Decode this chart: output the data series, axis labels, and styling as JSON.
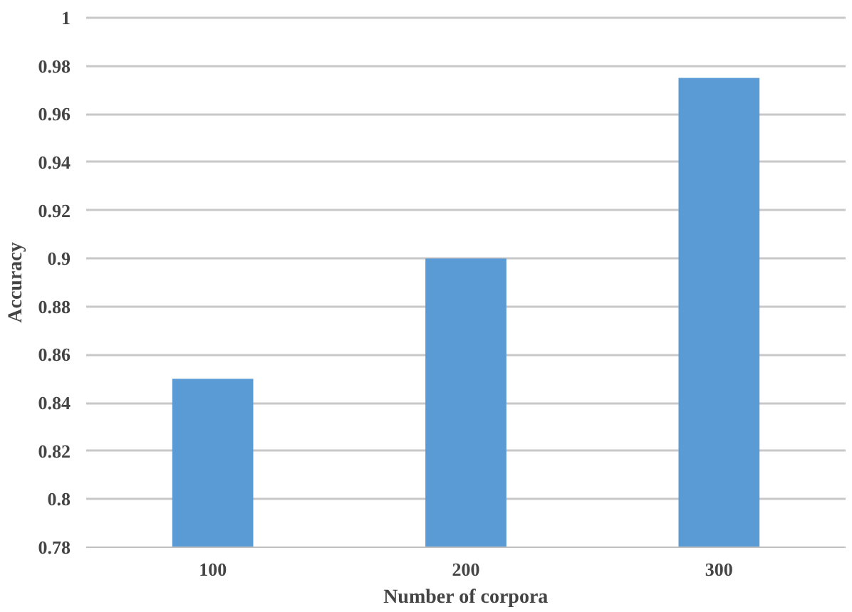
{
  "chart_data": {
    "type": "bar",
    "xlabel": "Number of corpora",
    "ylabel": "Accuracy",
    "categories": [
      "100",
      "200",
      "300"
    ],
    "values": [
      0.85,
      0.9,
      0.975
    ],
    "color": "#5b9bd5",
    "ylim": [
      0.78,
      1
    ],
    "yticks": [
      0.78,
      0.8,
      0.82,
      0.84,
      0.86,
      0.88,
      0.9,
      0.92,
      0.94,
      0.96,
      0.98,
      1
    ],
    "grid": "y"
  }
}
